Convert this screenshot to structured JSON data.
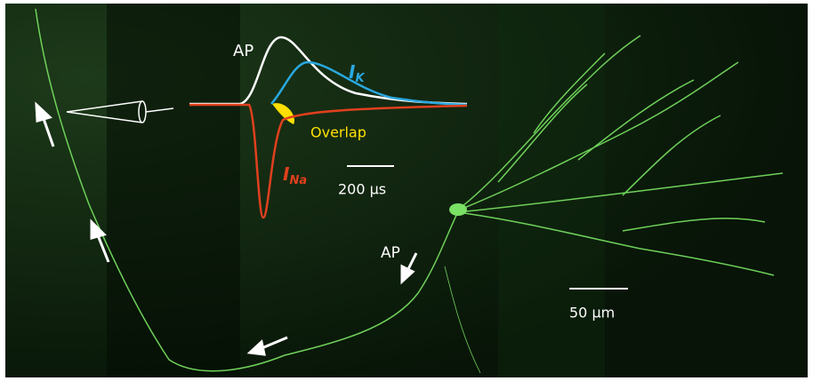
{
  "inset": {
    "ap_label": "AP",
    "ik_label": {
      "main": "I",
      "sub": "K"
    },
    "ina_label": {
      "main": "I",
      "sub": "Na"
    },
    "overlap_label": "Overlap",
    "time_scale": "200 μs"
  },
  "image": {
    "ap_label": "AP",
    "scale_bar": "50 μm"
  }
}
